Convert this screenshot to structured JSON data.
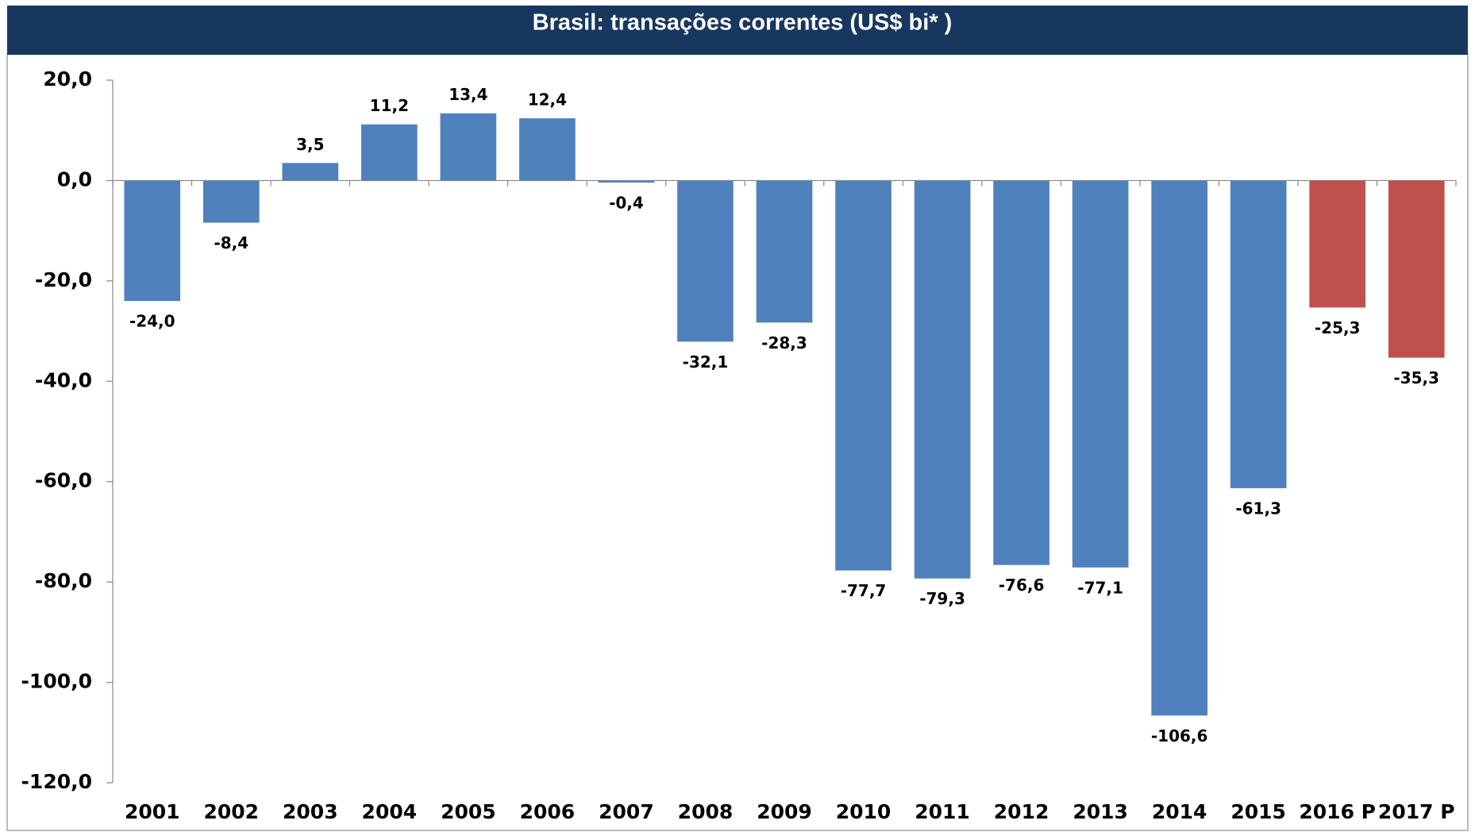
{
  "chart_data": {
    "type": "bar",
    "title": "Brasil: transações correntes (US$ bi* )",
    "categories": [
      "2001",
      "2002",
      "2003",
      "2004",
      "2005",
      "2006",
      "2007",
      "2008",
      "2009",
      "2010",
      "2011",
      "2012",
      "2013",
      "2014",
      "2015",
      "2016 P",
      "2017 P"
    ],
    "values": [
      -24.0,
      -8.4,
      3.5,
      11.2,
      13.4,
      12.4,
      -0.4,
      -32.1,
      -28.3,
      -77.7,
      -79.3,
      -76.6,
      -77.1,
      -106.6,
      -61.3,
      -25.3,
      -35.3
    ],
    "value_labels": [
      "-24,0",
      "-8,4",
      "3,5",
      "11,2",
      "13,4",
      "12,4",
      "-0,4",
      "-32,1",
      "-28,3",
      "-77,7",
      "-79,3",
      "-76,6",
      "-77,1",
      "-106,6",
      "-61,3",
      "-25,3",
      "-35,3"
    ],
    "colors": [
      "#4f81bd",
      "#4f81bd",
      "#4f81bd",
      "#4f81bd",
      "#4f81bd",
      "#4f81bd",
      "#4f81bd",
      "#4f81bd",
      "#4f81bd",
      "#4f81bd",
      "#4f81bd",
      "#4f81bd",
      "#4f81bd",
      "#4f81bd",
      "#4f81bd",
      "#c0504d",
      "#c0504d"
    ],
    "ylim": [
      -120,
      20
    ],
    "yticks": [
      {
        "value": 20,
        "label": "20,0"
      },
      {
        "value": 0,
        "label": "0,0"
      },
      {
        "value": -20,
        "label": "-20,0"
      },
      {
        "value": -40,
        "label": "-40,0"
      },
      {
        "value": -60,
        "label": "-60,0"
      },
      {
        "value": -80,
        "label": "-80,0"
      },
      {
        "value": -100,
        "label": "-100,0"
      },
      {
        "value": -120,
        "label": "-120,0"
      }
    ],
    "grid": false
  }
}
